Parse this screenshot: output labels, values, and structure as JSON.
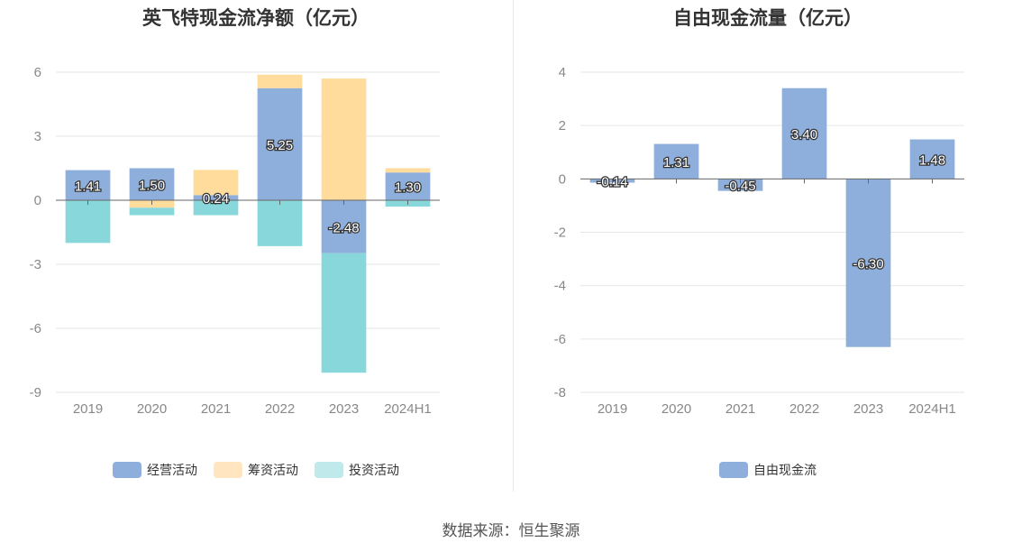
{
  "colors": {
    "operating": "#8eaedc",
    "financing": "#ffdb9c",
    "investing": "#88d8db",
    "free_cash_flow": "#8eaedc",
    "grid": "#e6e6e6",
    "axis": "#666666"
  },
  "source_text": "数据来源：恒生聚源",
  "chart_data": [
    {
      "type": "bar",
      "stacked": true,
      "title": "英飞特现金流净额（亿元）",
      "categories": [
        "2019",
        "2020",
        "2021",
        "2022",
        "2023",
        "2024H1"
      ],
      "ylim": [
        -9,
        6
      ],
      "yticks": [
        6,
        3,
        0,
        -3,
        -6,
        -9
      ],
      "grid": true,
      "legend_position": "bottom",
      "series": [
        {
          "name": "经营活动",
          "key": "operating",
          "values": [
            1.41,
            1.5,
            0.24,
            5.25,
            -2.48,
            1.3
          ],
          "labels": [
            "1.41",
            "1.50",
            "0.24",
            "5.25",
            "-2.48",
            "1.30"
          ]
        },
        {
          "name": "筹资活动",
          "key": "financing",
          "values": [
            0.0,
            -0.35,
            1.18,
            0.63,
            5.7,
            0.2
          ]
        },
        {
          "name": "投资活动",
          "key": "investing",
          "values": [
            -2.0,
            -0.35,
            -0.7,
            -2.15,
            -5.6,
            -0.3
          ]
        }
      ]
    },
    {
      "type": "bar",
      "title": "自由现金流量（亿元）",
      "categories": [
        "2019",
        "2020",
        "2021",
        "2022",
        "2023",
        "2024H1"
      ],
      "ylim": [
        -8,
        4
      ],
      "yticks": [
        4,
        2,
        0,
        -2,
        -4,
        -6,
        -8
      ],
      "grid": true,
      "legend_position": "bottom",
      "series": [
        {
          "name": "自由现金流",
          "key": "free_cash_flow",
          "values": [
            -0.14,
            1.31,
            -0.45,
            3.4,
            -6.3,
            1.48
          ],
          "labels": [
            "-0.14",
            "1.31",
            "-0.45",
            "3.40",
            "-6.30",
            "1.48"
          ]
        }
      ]
    }
  ]
}
